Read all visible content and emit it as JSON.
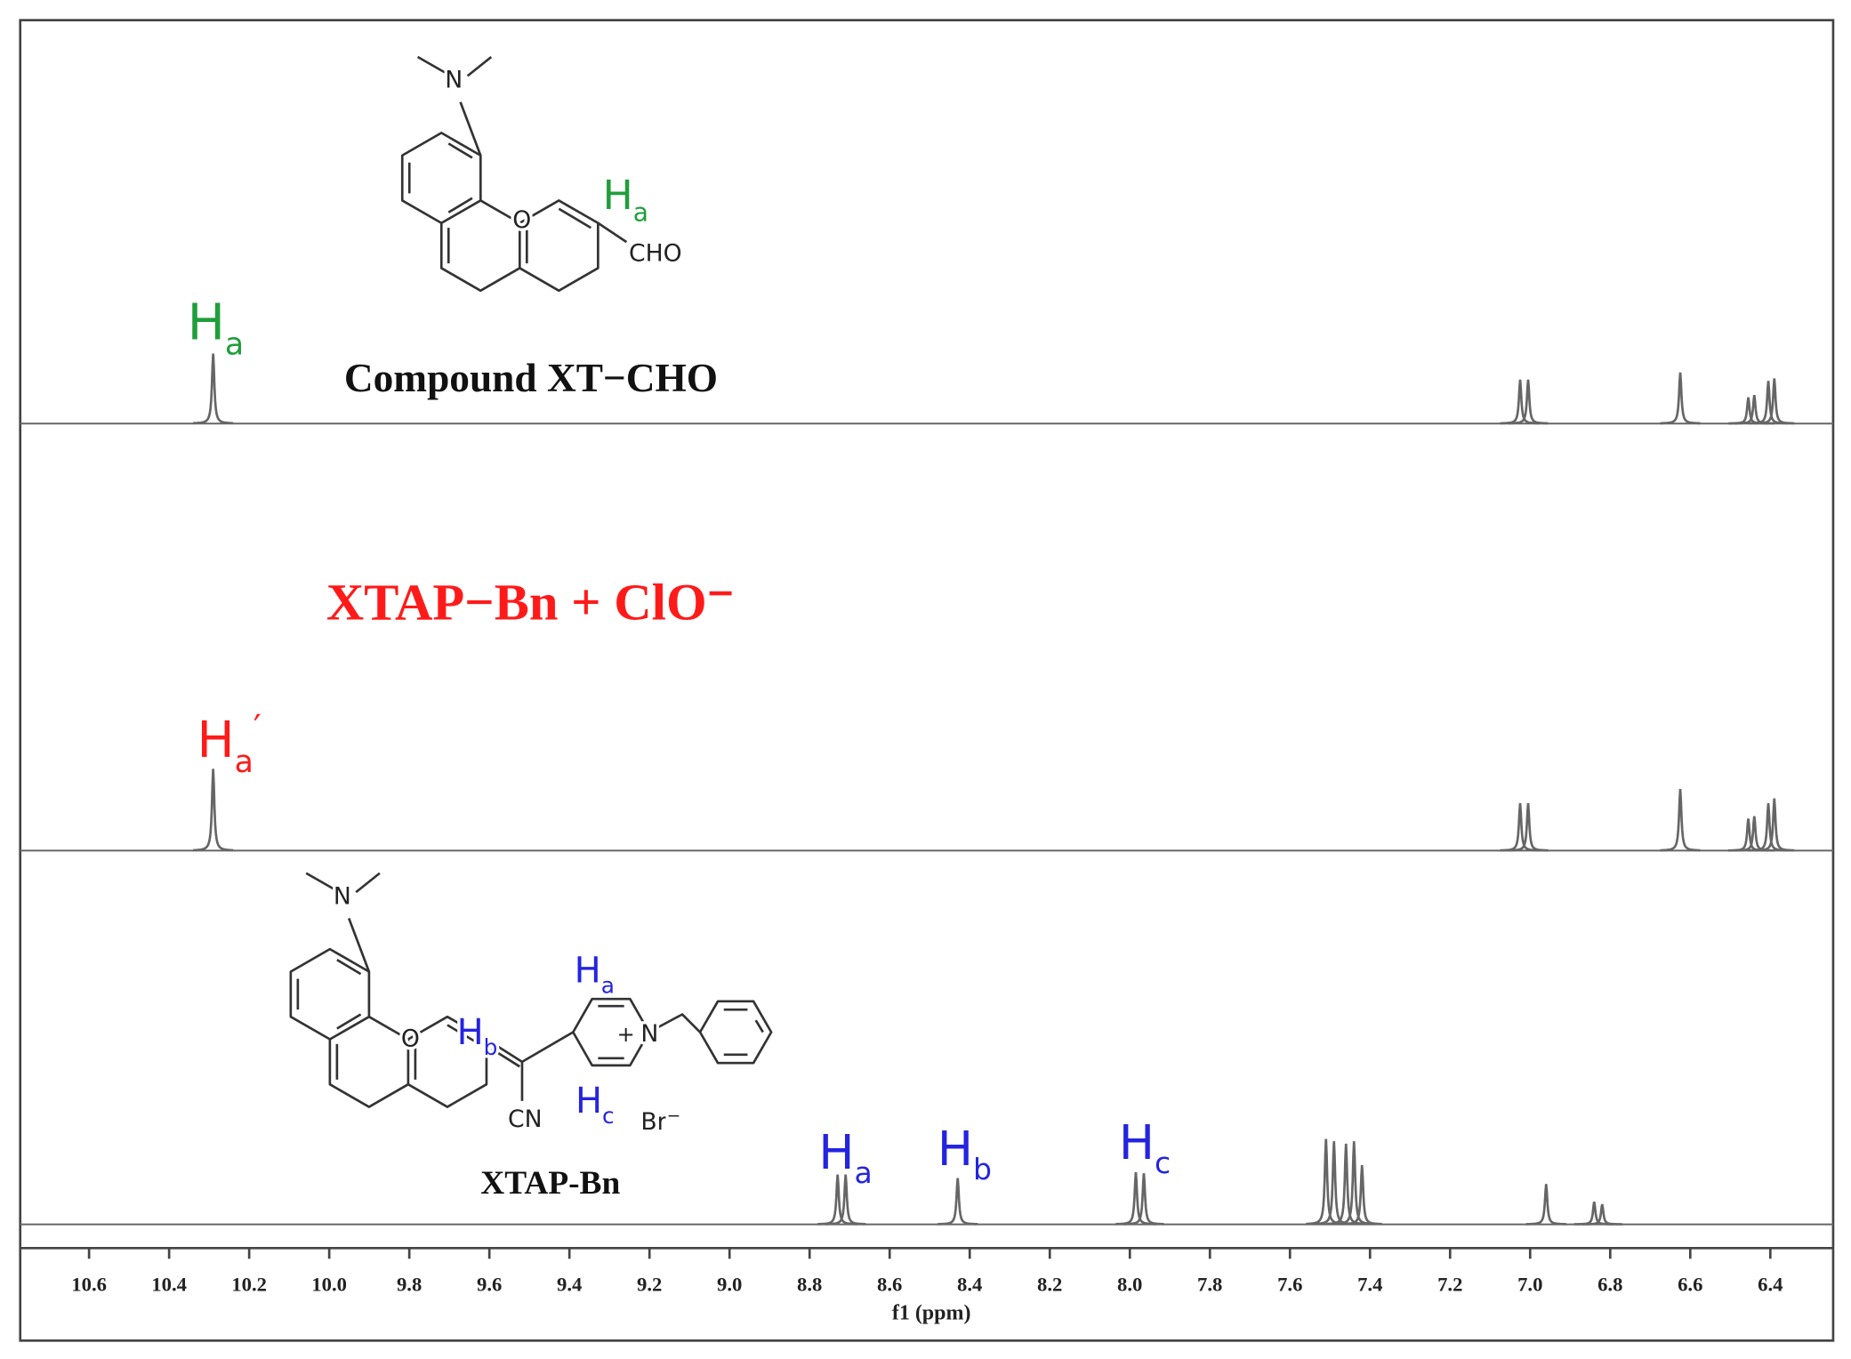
{
  "chart_data": {
    "type": "nmr",
    "x_label": "f1 (ppm)",
    "xlim": [
      10.772,
      6.243
    ],
    "xticks": [
      10.6,
      10.4,
      10.2,
      {
        "value": 10.0,
        "label": "10.0"
      },
      9.8,
      9.6,
      9.4,
      9.2,
      {
        "value": 9.0,
        "label": "9.0"
      },
      8.8,
      8.6,
      8.4,
      8.2,
      {
        "value": 8.0,
        "label": "8.0"
      },
      7.8,
      7.6,
      7.4,
      7.2,
      {
        "value": 7.0,
        "label": "7.0"
      },
      6.8,
      6.6,
      6.4
    ],
    "series": [
      {
        "name": "Compound XT−CHO",
        "name_color": "#111111",
        "color": "#666666",
        "x": [
          10.29,
          7.025,
          7.005,
          6.625,
          6.455,
          6.44,
          6.405,
          6.39
        ],
        "values": [
          59,
          37,
          37,
          43,
          22,
          24,
          36,
          38
        ]
      },
      {
        "name": "XTAP−Bn + ClO⁻",
        "name_color": "#ff1a1a",
        "color": "#666666",
        "x": [
          10.29,
          7.025,
          7.005,
          6.625,
          6.455,
          6.44,
          6.405,
          6.39
        ],
        "values": [
          69,
          40,
          40,
          52,
          27,
          29,
          40,
          44
        ]
      },
      {
        "name": "XTAP-Bn",
        "name_color": "#111111",
        "color": "#666666",
        "x": [
          8.73,
          8.71,
          8.43,
          7.985,
          7.965,
          7.51,
          7.49,
          7.46,
          7.44,
          7.42,
          6.96,
          6.84,
          6.82
        ],
        "values": [
          42,
          42,
          39,
          44,
          43,
          72,
          70,
          68,
          70,
          50,
          34,
          19,
          17
        ]
      }
    ],
    "annotations": [
      {
        "text": "H",
        "sub": "a",
        "color": "#1f9e3a"
      },
      {
        "text": "H",
        "sub": "a",
        "color": "#1f9e3a"
      },
      {
        "text": "CHO",
        "color": "#222222"
      },
      {
        "text": "N",
        "color": "#222222"
      },
      {
        "text": "O",
        "color": "#222222"
      },
      {
        "text": "H",
        "sub": "a",
        "sup": "′",
        "color": "#ff1a1a"
      },
      {
        "text": "H",
        "sub": "a",
        "color": "#2424e0"
      },
      {
        "text": "H",
        "sub": "b",
        "color": "#2424e0"
      },
      {
        "text": "H",
        "sub": "c",
        "color": "#2424e0"
      },
      {
        "text": "N",
        "color": "#222222"
      },
      {
        "text": "O",
        "color": "#222222"
      },
      {
        "text": "H",
        "sub": "b",
        "color": "#2424e0"
      },
      {
        "text": "H",
        "sub": "a",
        "color": "#2424e0"
      },
      {
        "text": "N",
        "color": "#222222"
      },
      {
        "text": "+",
        "color": "#222222"
      },
      {
        "text": "CN",
        "color": "#222222"
      },
      {
        "text": "H",
        "sub": "c",
        "color": "#2424e0"
      },
      {
        "text": "Br",
        "sup": "−",
        "color": "#222222"
      }
    ]
  }
}
